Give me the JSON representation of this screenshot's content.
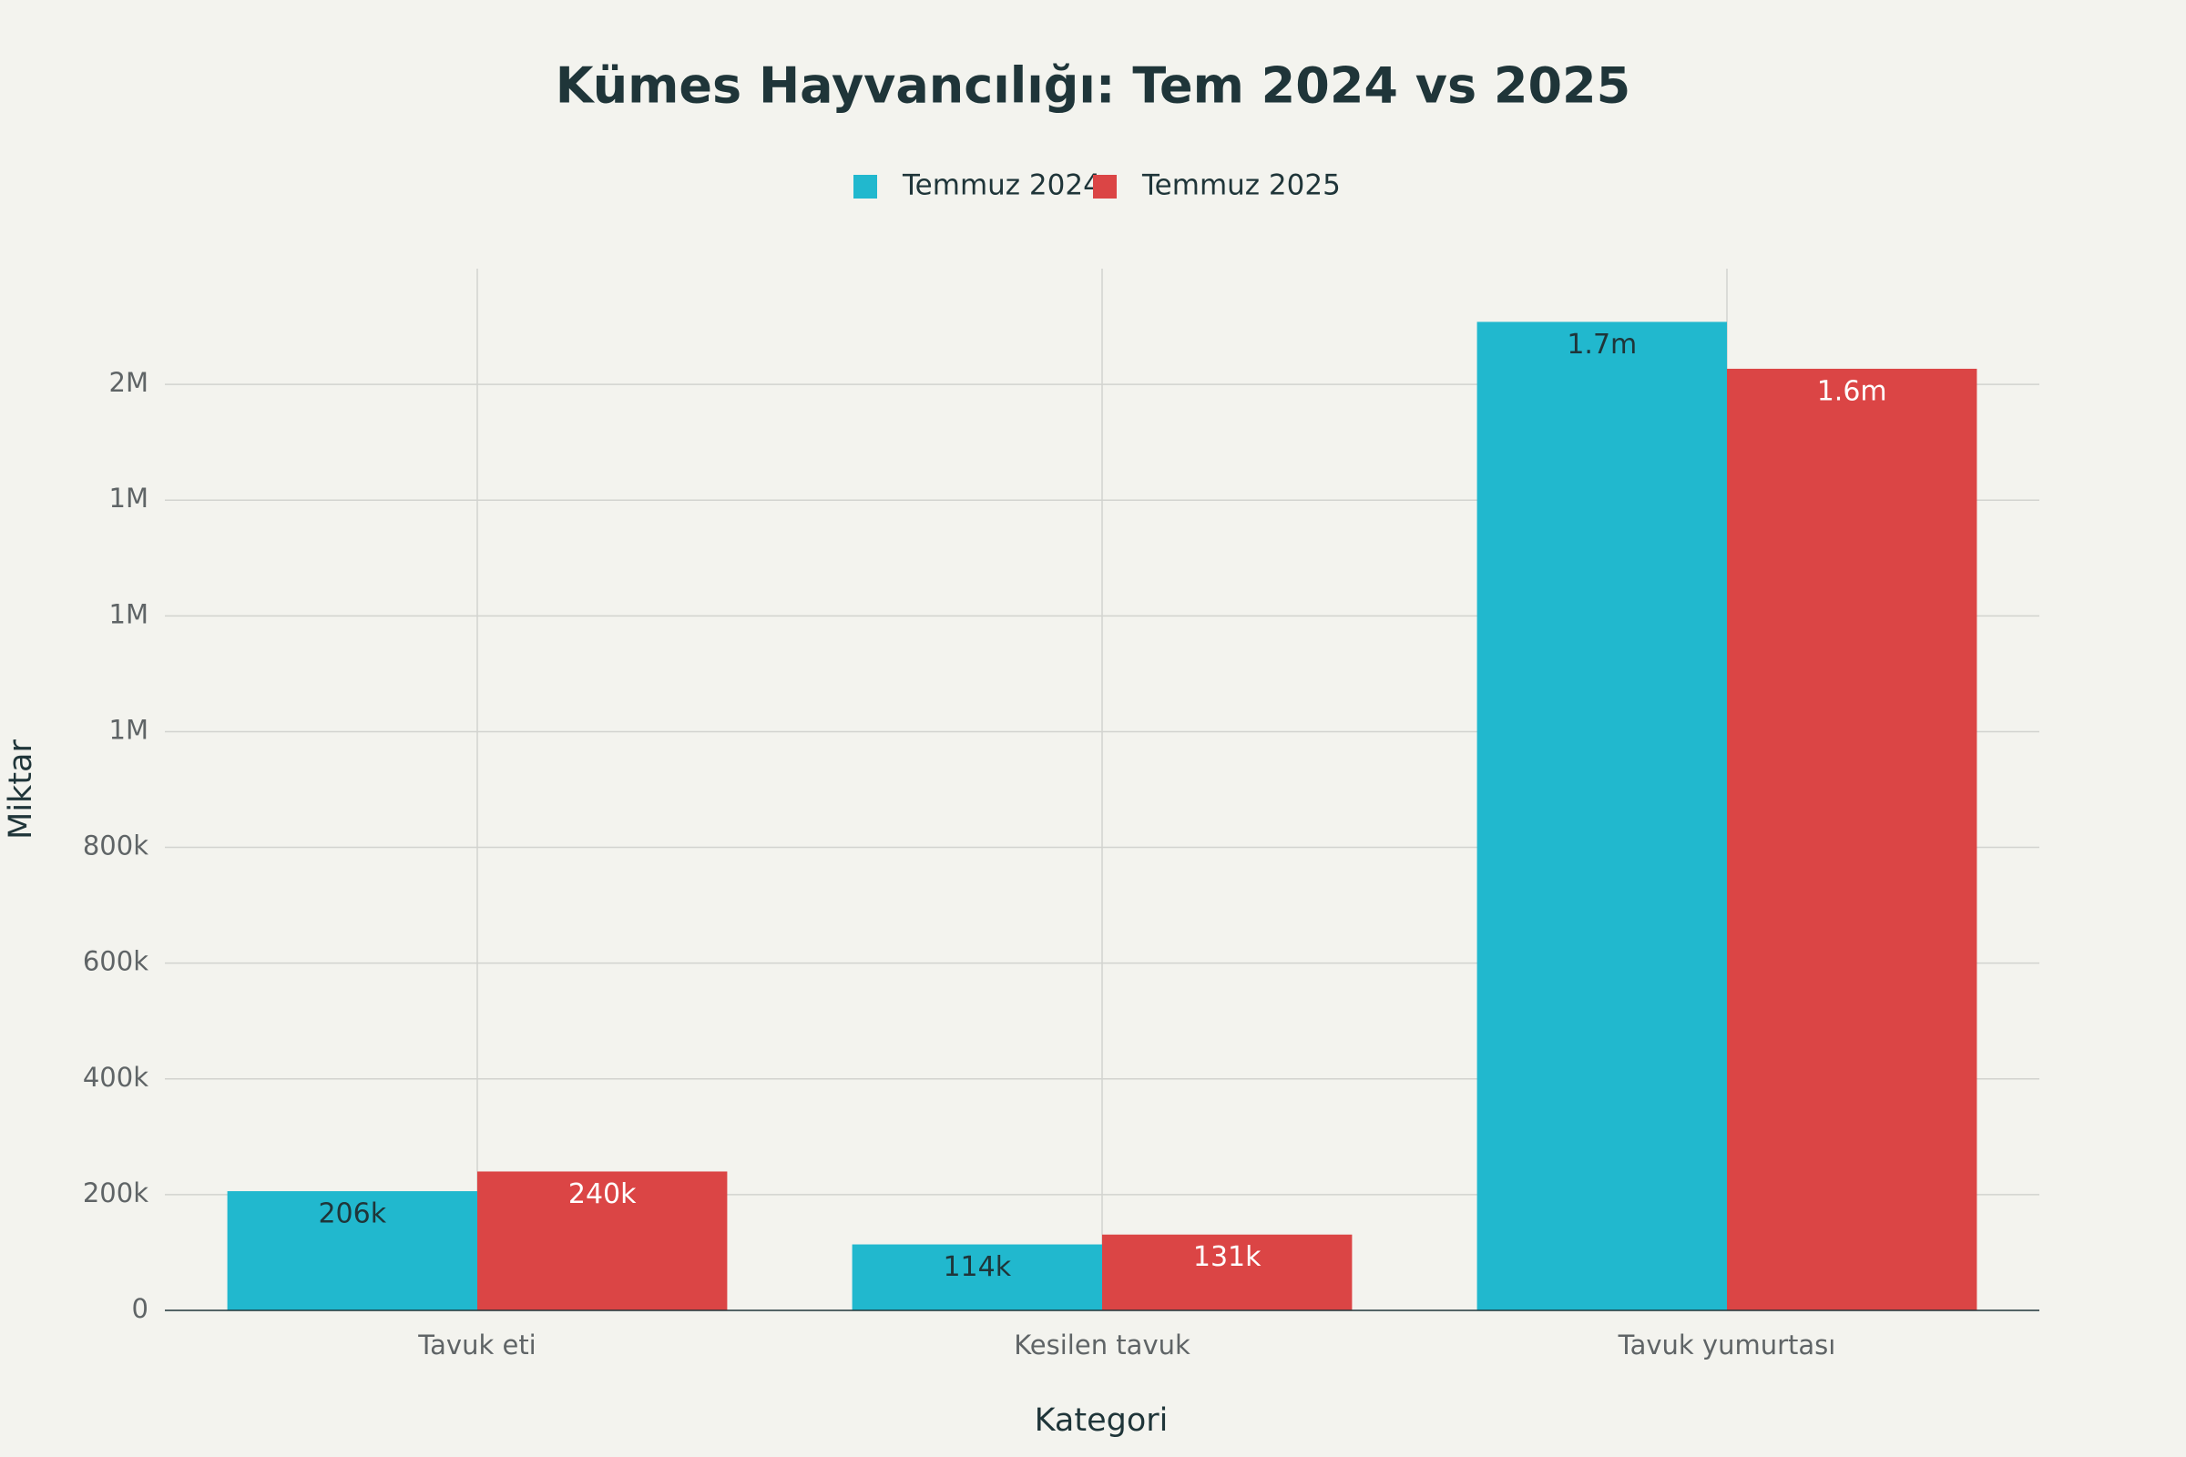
{
  "chart_data": {
    "type": "bar",
    "title": "Kümes Hayvancılığı: Tem 2024 vs 2025",
    "x_label": "Kategori",
    "y_label": "Miktar",
    "categories": [
      "Tavuk eti",
      "Kesilen tavuk",
      "Tavuk yumurtası"
    ],
    "series": [
      {
        "name": "Temmuz 2024",
        "color": "#21b8ce",
        "values": [
          206000,
          114000,
          1708000
        ],
        "value_labels": [
          "206k",
          "114k",
          "1.7m"
        ]
      },
      {
        "name": "Temmuz 2025",
        "color": "#db4545",
        "values": [
          240000,
          131000,
          1627000
        ],
        "value_labels": [
          "240k",
          "131k",
          "1.6m"
        ]
      }
    ],
    "ylim": [
      0,
      1800000
    ],
    "yticks": [
      0,
      {
        "value": 200000,
        "label": "200k"
      },
      {
        "value": 400000,
        "label": "400k"
      },
      {
        "value": 600000,
        "label": "600k"
      },
      {
        "value": 800000,
        "label": "800k"
      },
      {
        "value": 1000000,
        "label": "1M"
      },
      {
        "value": 1200000,
        "label": "1M"
      },
      {
        "value": 1400000,
        "label": "1M"
      },
      {
        "value": 1600000,
        "label": "2M"
      }
    ],
    "grid": true,
    "legend": "top"
  }
}
